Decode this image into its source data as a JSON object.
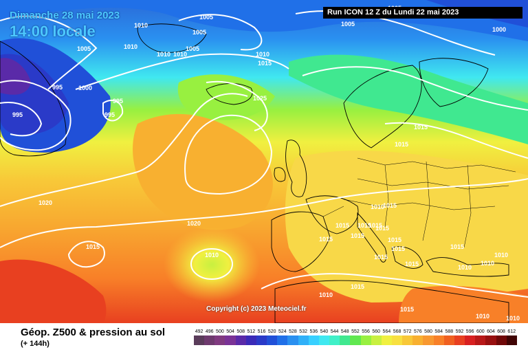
{
  "header": {
    "date": "Dimanche 28 mai 2023",
    "local_time": "14:00 locale",
    "run": "Run ICON 12 Z du Lundi 22 mai 2023"
  },
  "copyright": "Copyright (c) 2023 Meteociel.fr",
  "footer": {
    "title": "Géop. Z500 & pression au sol",
    "subtitle": "(+ 144h)"
  },
  "legend": {
    "labels": [
      "492",
      "496",
      "500",
      "504",
      "508",
      "512",
      "516",
      "520",
      "524",
      "528",
      "532",
      "536",
      "540",
      "544",
      "548",
      "552",
      "556",
      "560",
      "564",
      "568",
      "572",
      "576",
      "580",
      "584",
      "588",
      "592",
      "596",
      "600",
      "604",
      "608",
      "612"
    ],
    "colors": [
      "#5a3c5a",
      "#6e3a6e",
      "#803a80",
      "#7a3296",
      "#5a2aa8",
      "#3a2ab8",
      "#2a3ac8",
      "#2050d8",
      "#2070e8",
      "#2a90f0",
      "#30b0f8",
      "#38d0ff",
      "#40e8f0",
      "#40f0c8",
      "#40e890",
      "#60e850",
      "#98f040",
      "#c8f040",
      "#f0f040",
      "#f8e040",
      "#f8c838",
      "#f8b030",
      "#f89830",
      "#f88028",
      "#f06020",
      "#e84020",
      "#d82020",
      "#b81818",
      "#981010",
      "#700808",
      "#400404"
    ]
  },
  "isobars": [
    {
      "text": "1005",
      "name": "isobar-label-1005-a"
    },
    {
      "text": "1010",
      "name": "isobar-label-1010-a"
    },
    {
      "text": "1005",
      "name": "isobar-label-1005-b"
    },
    {
      "text": "1005",
      "name": "isobar-label-1005-c"
    },
    {
      "text": "1010",
      "name": "isobar-label-1010-b"
    },
    {
      "text": "1005",
      "name": "isobar-label-1005-d"
    },
    {
      "text": "1010",
      "name": "isobar-label-1010-c"
    },
    {
      "text": "1010",
      "name": "isobar-label-1010-d"
    },
    {
      "text": "1010",
      "name": "isobar-label-1010-e"
    },
    {
      "text": "1015",
      "name": "isobar-label-1015-a"
    },
    {
      "text": "1005",
      "name": "isobar-label-1005-e"
    },
    {
      "text": "1005",
      "name": "isobar-label-1005-f"
    },
    {
      "text": "1000",
      "name": "isobar-label-1000-a"
    },
    {
      "text": "995",
      "name": "isobar-label-995-a"
    },
    {
      "text": "1000",
      "name": "isobar-label-1000-b"
    },
    {
      "text": "995",
      "name": "isobar-label-995-b"
    },
    {
      "text": "995",
      "name": "isobar-label-995-c"
    },
    {
      "text": "995",
      "name": "isobar-label-995-d"
    },
    {
      "text": "1025",
      "name": "isobar-label-1025"
    },
    {
      "text": "1015",
      "name": "isobar-label-1015-b"
    },
    {
      "text": "1015",
      "name": "isobar-label-1015-c"
    },
    {
      "text": "1020",
      "name": "isobar-label-1020-a"
    },
    {
      "text": "1020",
      "name": "isobar-label-1020-b"
    },
    {
      "text": "1015",
      "name": "isobar-label-1015-d"
    },
    {
      "text": "1010",
      "name": "isobar-label-1010-f"
    },
    {
      "text": "1010",
      "name": "isobar-label-1010-g"
    },
    {
      "text": "1015",
      "name": "isobar-label-1015-e"
    },
    {
      "text": "1015",
      "name": "isobar-label-1015-f"
    },
    {
      "text": "1015",
      "name": "isobar-label-1015-g"
    },
    {
      "text": "1015",
      "name": "isobar-label-1015-h"
    },
    {
      "text": "1015",
      "name": "isobar-label-1015-i"
    },
    {
      "text": "1015",
      "name": "isobar-label-1015-j"
    },
    {
      "text": "1015",
      "name": "isobar-label-1015-k"
    },
    {
      "text": "1015",
      "name": "isobar-label-1015-l"
    },
    {
      "text": "1015",
      "name": "isobar-label-1015-m"
    },
    {
      "text": "1015",
      "name": "isobar-label-1015-n"
    },
    {
      "text": "1015",
      "name": "isobar-label-1015-o"
    },
    {
      "text": "1015",
      "name": "isobar-label-1015-p"
    },
    {
      "text": "1010",
      "name": "isobar-label-1010-h"
    },
    {
      "text": "1010",
      "name": "isobar-label-1010-i"
    },
    {
      "text": "1010",
      "name": "isobar-label-1010-j"
    },
    {
      "text": "1015",
      "name": "isobar-label-1015-q"
    },
    {
      "text": "1010",
      "name": "isobar-label-1010-k"
    },
    {
      "text": "1015",
      "name": "isobar-label-1015-r"
    },
    {
      "text": "1010",
      "name": "isobar-label-1010-l"
    },
    {
      "text": "1010",
      "name": "isobar-label-1010-m"
    }
  ]
}
